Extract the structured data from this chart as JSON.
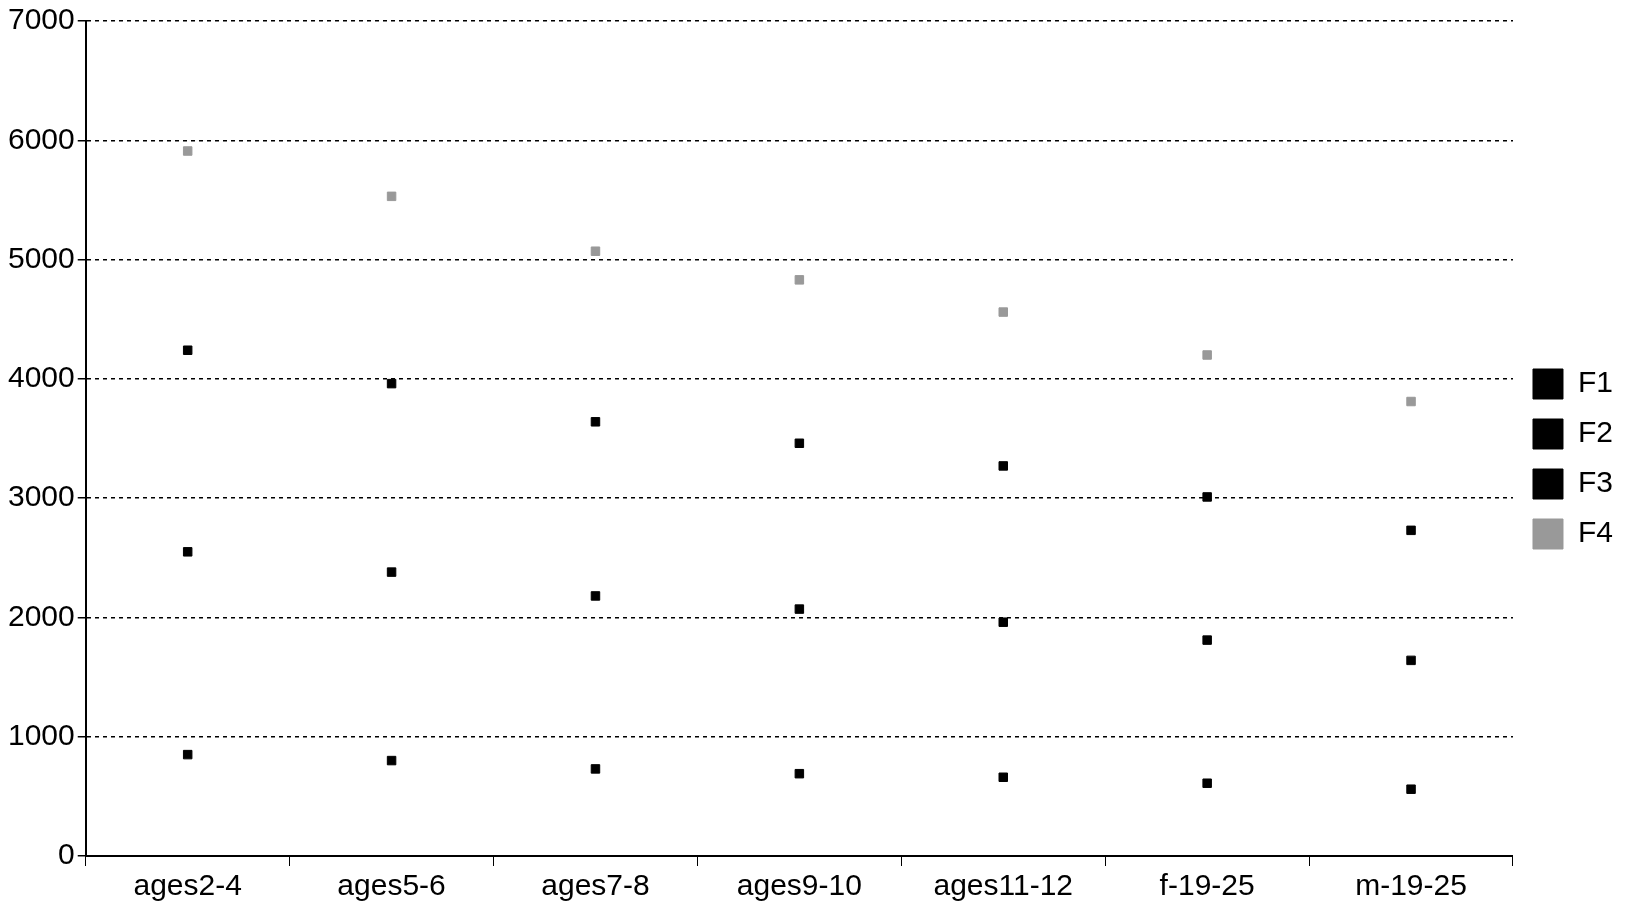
{
  "chart_data": {
    "type": "scatter",
    "categories": [
      "ages2-4",
      "ages5-6",
      "ages7-8",
      "ages9-10",
      "ages11-12",
      "f-19-25",
      "m-19-25"
    ],
    "series": [
      {
        "name": "F1",
        "color": "#000000",
        "values": [
          850,
          800,
          730,
          690,
          660,
          610,
          560
        ]
      },
      {
        "name": "F2",
        "color": "#000000",
        "values": [
          2550,
          2380,
          2180,
          2070,
          1960,
          1810,
          1640
        ]
      },
      {
        "name": "F3",
        "color": "#000000",
        "values": [
          4240,
          3960,
          3640,
          3460,
          3270,
          3010,
          2730
        ]
      },
      {
        "name": "F4",
        "color": "#999999",
        "values": [
          5910,
          5530,
          5070,
          4830,
          4560,
          4200,
          3810
        ]
      }
    ],
    "ylim": [
      0,
      7000
    ],
    "yticks": [
      0,
      1000,
      2000,
      3000,
      4000,
      5000,
      6000,
      7000
    ],
    "grid": "y",
    "legend": "right",
    "marker": "square"
  }
}
